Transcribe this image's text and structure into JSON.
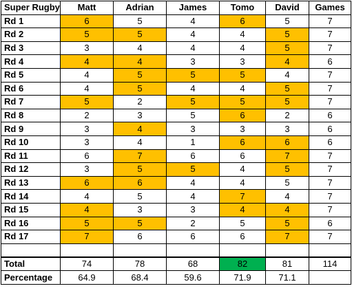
{
  "table": {
    "corner_label": "Super Rugby",
    "columns": [
      "Matt",
      "Adrian",
      "James",
      "Tomo",
      "David",
      "Games"
    ],
    "rows": [
      {
        "label": "Rd 1",
        "cells": [
          "6",
          "5",
          "4",
          "6",
          "5",
          "7"
        ],
        "highlight": [
          true,
          false,
          false,
          true,
          false,
          false
        ]
      },
      {
        "label": "Rd 2",
        "cells": [
          "5",
          "5",
          "4",
          "4",
          "5",
          "7"
        ],
        "highlight": [
          true,
          true,
          false,
          false,
          true,
          false
        ]
      },
      {
        "label": "Rd 3",
        "cells": [
          "3",
          "4",
          "4",
          "4",
          "5",
          "7"
        ],
        "highlight": [
          false,
          false,
          false,
          false,
          true,
          false
        ]
      },
      {
        "label": "Rd 4",
        "cells": [
          "4",
          "4",
          "3",
          "3",
          "4",
          "6"
        ],
        "highlight": [
          true,
          true,
          false,
          false,
          true,
          false
        ]
      },
      {
        "label": "Rd 5",
        "cells": [
          "4",
          "5",
          "5",
          "5",
          "4",
          "7"
        ],
        "highlight": [
          false,
          true,
          true,
          true,
          false,
          false
        ]
      },
      {
        "label": "Rd 6",
        "cells": [
          "4",
          "5",
          "4",
          "4",
          "5",
          "7"
        ],
        "highlight": [
          false,
          true,
          false,
          false,
          true,
          false
        ]
      },
      {
        "label": "Rd 7",
        "cells": [
          "5",
          "2",
          "5",
          "5",
          "5",
          "7"
        ],
        "highlight": [
          true,
          false,
          true,
          true,
          true,
          false
        ]
      },
      {
        "label": "Rd 8",
        "cells": [
          "2",
          "3",
          "5",
          "6",
          "2",
          "6"
        ],
        "highlight": [
          false,
          false,
          false,
          true,
          false,
          false
        ]
      },
      {
        "label": "Rd 9",
        "cells": [
          "3",
          "4",
          "3",
          "3",
          "3",
          "6"
        ],
        "highlight": [
          false,
          true,
          false,
          false,
          false,
          false
        ]
      },
      {
        "label": "Rd 10",
        "cells": [
          "3",
          "4",
          "1",
          "6",
          "6",
          "6"
        ],
        "highlight": [
          false,
          false,
          false,
          true,
          true,
          false
        ]
      },
      {
        "label": "Rd 11",
        "cells": [
          "6",
          "7",
          "6",
          "6",
          "7",
          "7"
        ],
        "highlight": [
          false,
          true,
          false,
          false,
          true,
          false
        ]
      },
      {
        "label": "Rd 12",
        "cells": [
          "3",
          "5",
          "5",
          "4",
          "5",
          "7"
        ],
        "highlight": [
          false,
          true,
          true,
          false,
          true,
          false
        ]
      },
      {
        "label": "Rd 13",
        "cells": [
          "6",
          "6",
          "4",
          "4",
          "5",
          "7"
        ],
        "highlight": [
          true,
          true,
          false,
          false,
          false,
          false
        ]
      },
      {
        "label": "Rd 14",
        "cells": [
          "4",
          "5",
          "4",
          "7",
          "4",
          "7"
        ],
        "highlight": [
          false,
          false,
          false,
          true,
          false,
          false
        ]
      },
      {
        "label": "Rd 15",
        "cells": [
          "4",
          "3",
          "3",
          "4",
          "4",
          "7"
        ],
        "highlight": [
          true,
          false,
          false,
          true,
          true,
          false
        ]
      },
      {
        "label": "Rd 16",
        "cells": [
          "5",
          "5",
          "2",
          "5",
          "5",
          "6"
        ],
        "highlight": [
          true,
          true,
          false,
          false,
          true,
          false
        ]
      },
      {
        "label": "Rd 17",
        "cells": [
          "7",
          "6",
          "6",
          "6",
          "7",
          "7"
        ],
        "highlight": [
          true,
          false,
          false,
          false,
          true,
          false
        ]
      }
    ],
    "total": {
      "label": "Total",
      "cells": [
        "74",
        "78",
        "68",
        "82",
        "81",
        "114"
      ],
      "highlight_green": [
        false,
        false,
        false,
        true,
        false,
        false
      ]
    },
    "percentage": {
      "label": "Percentage",
      "cells": [
        "64.9",
        "68.4",
        "59.6",
        "71.9",
        "71.1",
        ""
      ]
    }
  },
  "colors": {
    "highlight": "#ffc000",
    "best_total": "#00b050"
  }
}
